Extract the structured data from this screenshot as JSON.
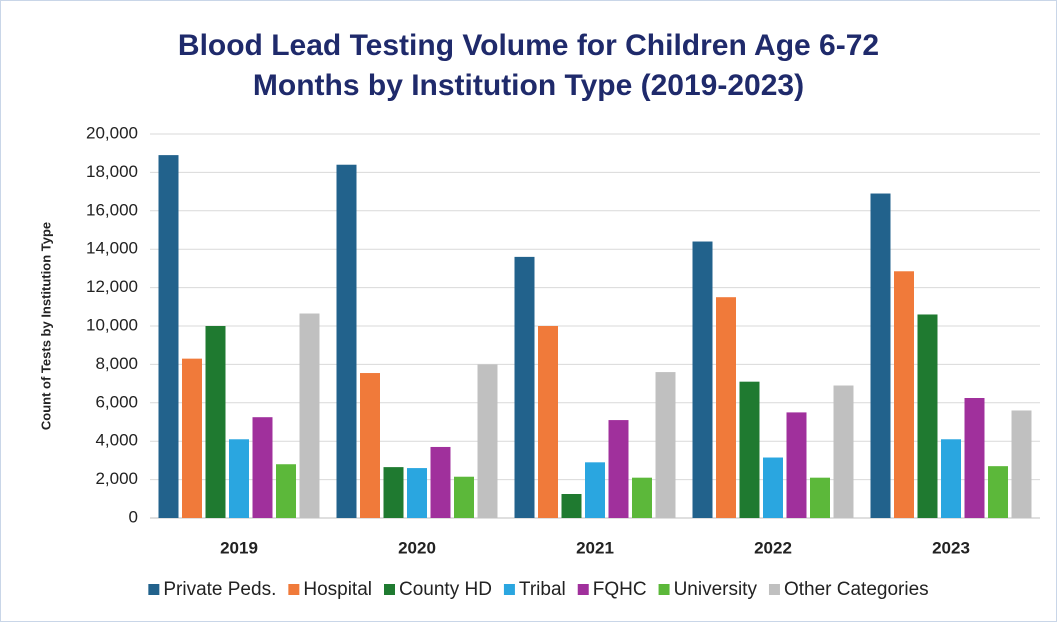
{
  "chart_data": {
    "type": "bar",
    "title": "Blood Lead Testing Volume for Children Age 6-72 Months by Institution Type (2019-2023)",
    "y_label": "Count of Tests by Institution Type",
    "categories": [
      "2019",
      "2020",
      "2021",
      "2022",
      "2023"
    ],
    "series": [
      {
        "name": "Private Peds.",
        "color": "#22628c",
        "values": [
          18900,
          18400,
          13600,
          14400,
          16900
        ]
      },
      {
        "name": "Hospital",
        "color": "#f07a3a",
        "values": [
          8300,
          7550,
          10000,
          11500,
          12850
        ]
      },
      {
        "name": "County HD",
        "color": "#1f7a30",
        "values": [
          10000,
          2650,
          1250,
          7100,
          10600
        ]
      },
      {
        "name": "Tribal",
        "color": "#2aa6e0",
        "values": [
          4100,
          2600,
          2900,
          3150,
          4100
        ]
      },
      {
        "name": "FQHC",
        "color": "#a0309c",
        "values": [
          5250,
          3700,
          5100,
          5500,
          6250
        ]
      },
      {
        "name": "University",
        "color": "#5cb83a",
        "values": [
          2800,
          2150,
          2100,
          2100,
          2700
        ]
      },
      {
        "name": "Other Categories",
        "color": "#c0c0c0",
        "values": [
          10650,
          8000,
          7600,
          6900,
          5600
        ]
      }
    ],
    "ylim": [
      0,
      20000
    ],
    "yticks": [
      0,
      {
        "value": 2000,
        "label": "2,000"
      },
      {
        "value": 4000,
        "label": "4,000"
      },
      {
        "value": 6000,
        "label": "6,000"
      },
      {
        "value": 8000,
        "label": "8,000"
      },
      {
        "value": 10000,
        "label": "10,000"
      },
      {
        "value": 12000,
        "label": "12,000"
      },
      {
        "value": 14000,
        "label": "14,000"
      },
      {
        "value": 16000,
        "label": "16,000"
      },
      {
        "value": 18000,
        "label": "18,000"
      },
      {
        "value": 20000,
        "label": "20,000"
      }
    ],
    "grid": true,
    "legend": "bottom"
  }
}
